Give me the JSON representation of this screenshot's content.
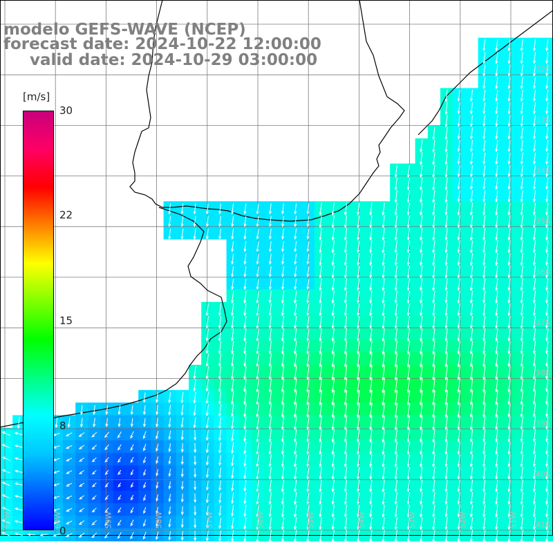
{
  "header": {
    "model": "modelo GEFS-WAVE (NCEP)",
    "forecast": "forecast date: 2024-10-22 12:00:00",
    "valid": "valid date: 2024-10-29 03:00:00"
  },
  "colorbar": {
    "unit": "[m/s]",
    "min": 0,
    "max": 30,
    "ticks": [
      "30",
      "22",
      "15",
      "8",
      "0"
    ],
    "colors": [
      "#0000ff",
      "#0064ff",
      "#00c8ff",
      "#00ffff",
      "#00ff80",
      "#00ff00",
      "#80ff00",
      "#ffff00",
      "#ff8000",
      "#ff0000",
      "#ff0064",
      "#c8007d"
    ]
  },
  "map": {
    "land_color": "#ffffff",
    "grid_color": "#7a7a7a",
    "coast_color": "#000000",
    "arrow_color": "#ffffff",
    "lat_labels": [
      "32S",
      "33S",
      "34S",
      "35S",
      "36S",
      "37S",
      "38S",
      "39S",
      "40S",
      "41S"
    ],
    "lon_labels": [
      "61W",
      "60W",
      "59W",
      "58W",
      "57W",
      "56W",
      "55W",
      "54W",
      "53W",
      "52W",
      "51W"
    ]
  }
}
